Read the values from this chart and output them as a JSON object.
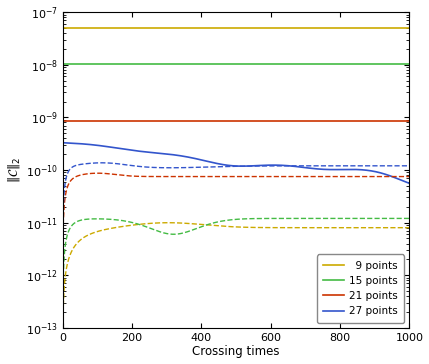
{
  "xlabel": "Crossing times",
  "ylabel": "$\\|\\mathcal{C}\\|_2$",
  "xlim": [
    0,
    1000
  ],
  "ylim_log": [
    -13,
    -7
  ],
  "colors": {
    "9": "#ccaa00",
    "15": "#44bb44",
    "21": "#cc3300",
    "27": "#3355cc"
  },
  "legend_labels": [
    "  9 points",
    "15 points",
    "21 points",
    "27 points"
  ],
  "solid_9": 5e-08,
  "solid_15": 1.05e-08,
  "solid_21": 8.5e-10,
  "background_color": "#ffffff",
  "figsize": [
    4.29,
    3.64
  ],
  "dpi": 100
}
